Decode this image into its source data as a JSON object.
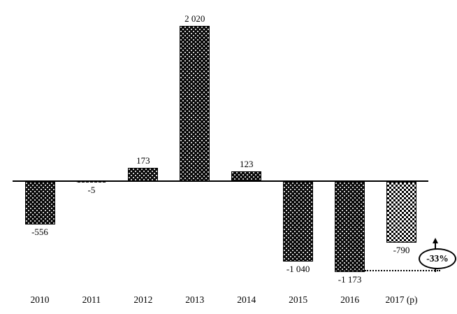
{
  "chart_data": {
    "type": "bar",
    "categories": [
      "2010",
      "2011",
      "2012",
      "2013",
      "2014",
      "2015",
      "2016",
      "2017 (p)"
    ],
    "values": [
      -556,
      -5,
      173,
      2020,
      123,
      -1040,
      -1173,
      -790
    ],
    "value_labels": [
      "-556",
      "-5",
      "173",
      "2 020",
      "123",
      "-1 040",
      "-1 173",
      "-790"
    ],
    "patterns": [
      "dots",
      "dots",
      "dots",
      "dots",
      "dots",
      "dots",
      "dots",
      "checker"
    ],
    "title": "",
    "xlabel": "",
    "ylabel": "",
    "ylim": [
      -1300,
      2100
    ],
    "grid": false,
    "legend": "none",
    "annotation": {
      "text": "-33%",
      "shape": "ellipse",
      "arrow_direction": "up",
      "connector": "dotted horizontal line from bottom of 2016 bar to below the ellipse"
    },
    "colors": {
      "bar_fill": "#000000",
      "bar_dot": "#ffffff",
      "axis": "#000000",
      "background": "#ffffff",
      "text": "#000000"
    }
  }
}
